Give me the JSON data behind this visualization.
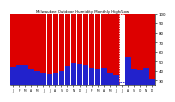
{
  "title": "Milwaukee Outdoor Humidity Monthly High/Low",
  "months": [
    "J",
    "F",
    "M",
    "A",
    "M",
    "J",
    "J",
    "A",
    "S",
    "O",
    "N",
    "D",
    "J",
    "F",
    "M",
    "A",
    "M",
    "J",
    "J",
    "A",
    "S",
    "O",
    "N",
    "D"
  ],
  "highs": [
    97,
    97,
    97,
    97,
    97,
    97,
    97,
    97,
    97,
    97,
    97,
    97,
    97,
    97,
    97,
    97,
    97,
    97,
    93,
    97,
    97,
    97,
    97,
    97
  ],
  "lows": [
    44,
    46,
    46,
    42,
    40,
    38,
    37,
    38,
    40,
    45,
    48,
    47,
    46,
    43,
    42,
    43,
    38,
    36,
    28,
    55,
    42,
    41,
    43,
    32
  ],
  "high_color": "#dd0000",
  "low_color": "#2222cc",
  "bg_color": "#ffffff",
  "plot_bg": "#ffffff",
  "ymin": 25,
  "ymax": 100,
  "ytick_labels": [
    "30",
    "40",
    "50",
    "60",
    "70",
    "80",
    "90",
    "100"
  ],
  "ytick_vals": [
    30,
    40,
    50,
    60,
    70,
    80,
    90,
    100
  ],
  "dashed_index": 18,
  "bar_width": 0.92
}
